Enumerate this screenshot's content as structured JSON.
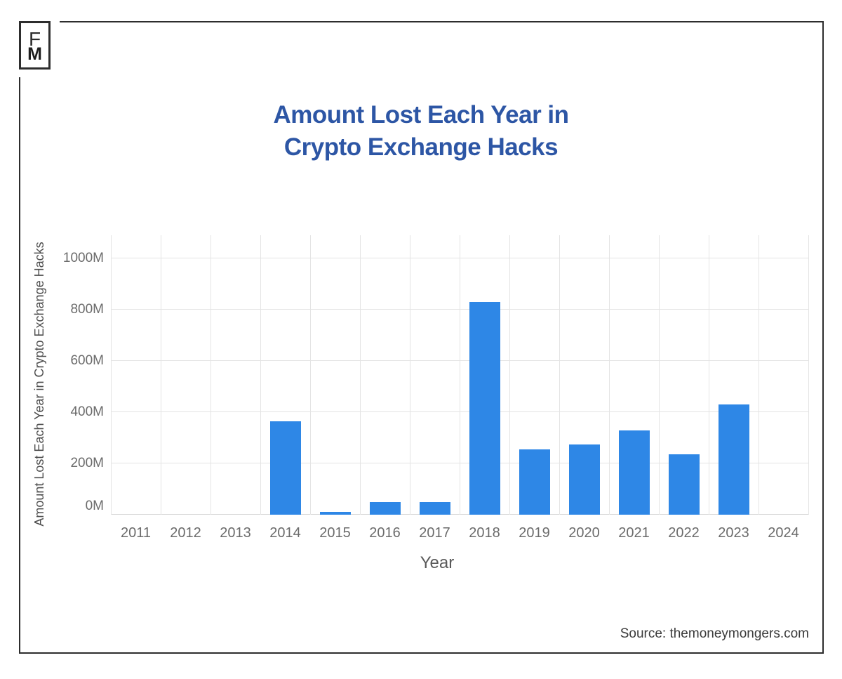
{
  "logo": {
    "letter_top": "F",
    "letter_bottom": "M"
  },
  "title": {
    "line1": "Amount Lost Each Year in",
    "line2": "Crypto Exchange Hacks"
  },
  "source_text": "Source: themoneymongers.com",
  "colors": {
    "bar": "#2e87e6",
    "title": "#2d56a5",
    "gridline": "#e4e4e4",
    "axis_line": "#d6d6d6",
    "tick_text": "#6b6b6b",
    "frame": "#2d2d2d"
  },
  "chart_data": {
    "type": "bar",
    "title": "Amount Lost Each Year in Crypto Exchange Hacks",
    "xlabel": "Year",
    "ylabel": "Amount Lost Each Year in Crypto Exchange Hacks",
    "categories": [
      "2011",
      "2012",
      "2013",
      "2014",
      "2015",
      "2016",
      "2017",
      "2018",
      "2019",
      "2020",
      "2021",
      "2022",
      "2023",
      "2024"
    ],
    "values": [
      0,
      0,
      0,
      365,
      10,
      50,
      50,
      830,
      255,
      275,
      330,
      235,
      430,
      0
    ],
    "unit": "M USD",
    "ylim": [
      0,
      1090
    ],
    "yticks": [
      0,
      200,
      400,
      600,
      800,
      1000
    ],
    "ytick_labels": [
      "0M",
      "200M",
      "400M",
      "600M",
      "800M",
      "1000M"
    ],
    "grid": true,
    "legend": false
  }
}
